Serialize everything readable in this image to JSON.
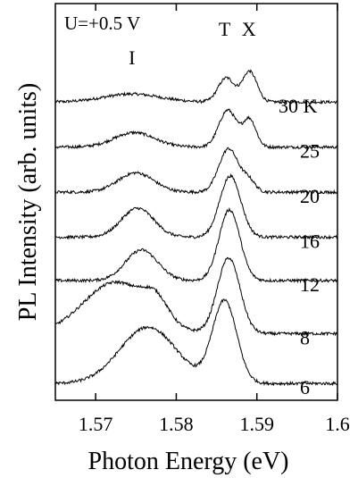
{
  "chart_data": {
    "type": "line",
    "title": "",
    "xlabel": "Photon Energy (eV)",
    "ylabel": "PL Intensity (arb. units)",
    "xlim": [
      1.565,
      1.6
    ],
    "x_ticks": [
      1.57,
      1.58,
      1.59,
      1.6
    ],
    "x_tick_labels": [
      "1.57",
      "1.58",
      "1.59",
      "1.6"
    ],
    "y_ticks": "none",
    "grid": false,
    "legend": "none",
    "annotations": {
      "condition": "U=+0.5 V",
      "peak_I": "I",
      "peak_T": "T",
      "peak_X": "X"
    },
    "peaks": {
      "I": 1.5745,
      "T": 1.586,
      "X": 1.589
    },
    "series": [
      {
        "name": "30 K",
        "label": "30 K",
        "baseline": 9.05,
        "peaks": [
          {
            "center": 1.5745,
            "amp": 0.25,
            "width": 0.0035
          },
          {
            "center": 1.5862,
            "amp": 0.75,
            "width": 0.001
          },
          {
            "center": 1.5891,
            "amp": 0.95,
            "width": 0.0009
          }
        ]
      },
      {
        "name": "25",
        "label": "25",
        "baseline": 7.65,
        "peaks": [
          {
            "center": 1.5748,
            "amp": 0.45,
            "width": 0.0025
          },
          {
            "center": 1.5864,
            "amp": 1.15,
            "width": 0.0011
          },
          {
            "center": 1.5891,
            "amp": 0.85,
            "width": 0.0008
          }
        ]
      },
      {
        "name": "20",
        "label": "20",
        "baseline": 6.25,
        "peaks": [
          {
            "center": 1.575,
            "amp": 0.6,
            "width": 0.0022
          },
          {
            "center": 1.5865,
            "amp": 1.35,
            "width": 0.0012
          },
          {
            "center": 1.589,
            "amp": 0.35,
            "width": 0.0008
          }
        ]
      },
      {
        "name": "16",
        "label": "16",
        "baseline": 4.85,
        "peaks": [
          {
            "center": 1.5752,
            "amp": 0.9,
            "width": 0.002
          },
          {
            "center": 1.5867,
            "amp": 1.9,
            "width": 0.0013
          }
        ]
      },
      {
        "name": "12",
        "label": "12",
        "baseline": 3.5,
        "peaks": [
          {
            "center": 1.5757,
            "amp": 0.95,
            "width": 0.002
          },
          {
            "center": 1.5866,
            "amp": 2.2,
            "width": 0.0013
          }
        ]
      },
      {
        "name": "8",
        "label": "8",
        "baseline": 1.85,
        "peaks": [
          {
            "center": 1.5725,
            "amp": 1.6,
            "width": 0.004
          },
          {
            "center": 1.5775,
            "amp": 0.6,
            "width": 0.0015
          },
          {
            "center": 1.5865,
            "amp": 2.35,
            "width": 0.0014
          }
        ]
      },
      {
        "name": "6",
        "label": "6",
        "baseline": 0.3,
        "peaks": [
          {
            "center": 1.5765,
            "amp": 1.75,
            "width": 0.0035
          },
          {
            "center": 1.586,
            "amp": 2.55,
            "width": 0.0015
          }
        ]
      }
    ]
  }
}
